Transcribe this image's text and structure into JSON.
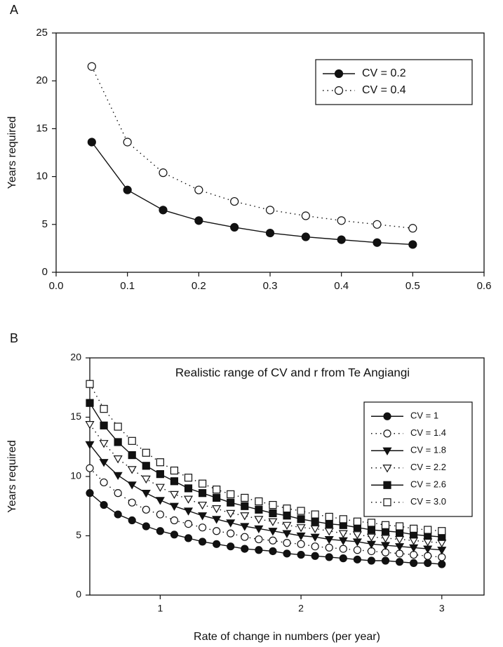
{
  "chart_data": [
    {
      "type": "line",
      "panel": "A",
      "ylabel": "Years required",
      "x": [
        0.05,
        0.1,
        0.15,
        0.2,
        0.25,
        0.3,
        0.35,
        0.4,
        0.45,
        0.5
      ],
      "xlim": [
        0,
        0.6
      ],
      "xticks": [
        {
          "value": 0,
          "label": "0.0"
        },
        0.1,
        0.2,
        0.3,
        0.4,
        0.5,
        0.6
      ],
      "ylim": [
        0,
        25
      ],
      "yticks": [
        0,
        5,
        10,
        15,
        20,
        25
      ],
      "legend": "upper right",
      "series": [
        {
          "name": "CV = 0.2",
          "color": "#111111",
          "marker": "circle",
          "filled": true,
          "line_style": "solid",
          "values": [
            13.6,
            8.6,
            6.5,
            5.4,
            4.7,
            4.1,
            3.7,
            3.4,
            3.1,
            2.9
          ]
        },
        {
          "name": "CV = 0.4",
          "color": "#111111",
          "marker": "circle",
          "filled": false,
          "line_style": "dotted",
          "values": [
            21.5,
            13.6,
            10.4,
            8.6,
            7.4,
            6.5,
            5.9,
            5.4,
            5.0,
            4.6
          ]
        }
      ]
    },
    {
      "type": "line",
      "panel": "B",
      "title": "Realistic range of CV and r from Te Angiangi",
      "xlabel": "Rate of change in numbers (per year)",
      "ylabel": "Years required",
      "x": [
        0.5,
        0.6,
        0.7,
        0.8,
        0.9,
        1.0,
        1.1,
        1.2,
        1.3,
        1.4,
        1.5,
        1.6,
        1.7,
        1.8,
        1.9,
        2.0,
        2.1,
        2.2,
        2.3,
        2.4,
        2.5,
        2.6,
        2.7,
        2.8,
        2.9,
        3.0
      ],
      "xlim": [
        0.5,
        3.3
      ],
      "xticks": [
        1,
        2,
        3
      ],
      "ylim": [
        0,
        20
      ],
      "yticks": [
        0,
        5,
        10,
        15,
        20
      ],
      "legend": "upper right",
      "series": [
        {
          "name": "CV = 1",
          "color": "#111111",
          "marker": "circle",
          "filled": true,
          "line_style": "solid",
          "values": [
            8.6,
            7.6,
            6.8,
            6.3,
            5.8,
            5.4,
            5.1,
            4.8,
            4.5,
            4.3,
            4.1,
            3.9,
            3.8,
            3.7,
            3.5,
            3.4,
            3.3,
            3.2,
            3.1,
            3.0,
            2.9,
            2.9,
            2.8,
            2.7,
            2.7,
            2.6
          ]
        },
        {
          "name": "CV = 1.4",
          "color": "#111111",
          "marker": "circle",
          "filled": false,
          "line_style": "dotted",
          "values": [
            10.7,
            9.5,
            8.6,
            7.8,
            7.2,
            6.8,
            6.3,
            6.0,
            5.7,
            5.4,
            5.2,
            4.9,
            4.7,
            4.6,
            4.4,
            4.3,
            4.1,
            4.0,
            3.9,
            3.8,
            3.7,
            3.6,
            3.5,
            3.4,
            3.3,
            3.2
          ]
        },
        {
          "name": "CV = 1.8",
          "color": "#111111",
          "marker": "triangle-down",
          "filled": true,
          "line_style": "solid",
          "values": [
            12.7,
            11.2,
            10.1,
            9.3,
            8.6,
            8.0,
            7.5,
            7.1,
            6.7,
            6.4,
            6.1,
            5.8,
            5.6,
            5.4,
            5.2,
            5.0,
            4.9,
            4.7,
            4.6,
            4.5,
            4.3,
            4.2,
            4.1,
            4.0,
            3.9,
            3.8
          ]
        },
        {
          "name": "CV = 2.2",
          "color": "#111111",
          "marker": "triangle-down",
          "filled": false,
          "line_style": "dotted",
          "values": [
            14.4,
            12.8,
            11.5,
            10.6,
            9.8,
            9.1,
            8.5,
            8.1,
            7.6,
            7.3,
            6.9,
            6.7,
            6.4,
            6.2,
            5.9,
            5.7,
            5.6,
            5.4,
            5.2,
            5.1,
            4.9,
            4.8,
            4.7,
            4.6,
            4.5,
            4.4
          ]
        },
        {
          "name": "CV = 2.6",
          "color": "#111111",
          "marker": "square",
          "filled": true,
          "line_style": "solid",
          "values": [
            16.2,
            14.3,
            12.9,
            11.8,
            10.9,
            10.2,
            9.6,
            9.0,
            8.6,
            8.2,
            7.8,
            7.5,
            7.2,
            6.9,
            6.7,
            6.4,
            6.2,
            6.0,
            5.9,
            5.7,
            5.5,
            5.4,
            5.3,
            5.1,
            5.0,
            4.9
          ]
        },
        {
          "name": "CV = 3.0",
          "color": "#111111",
          "marker": "square",
          "filled": false,
          "line_style": "dotted",
          "values": [
            17.8,
            15.7,
            14.2,
            13.0,
            12.0,
            11.2,
            10.5,
            9.9,
            9.4,
            8.9,
            8.5,
            8.2,
            7.9,
            7.6,
            7.3,
            7.1,
            6.8,
            6.6,
            6.4,
            6.2,
            6.1,
            5.9,
            5.8,
            5.6,
            5.5,
            5.4
          ]
        }
      ]
    }
  ]
}
